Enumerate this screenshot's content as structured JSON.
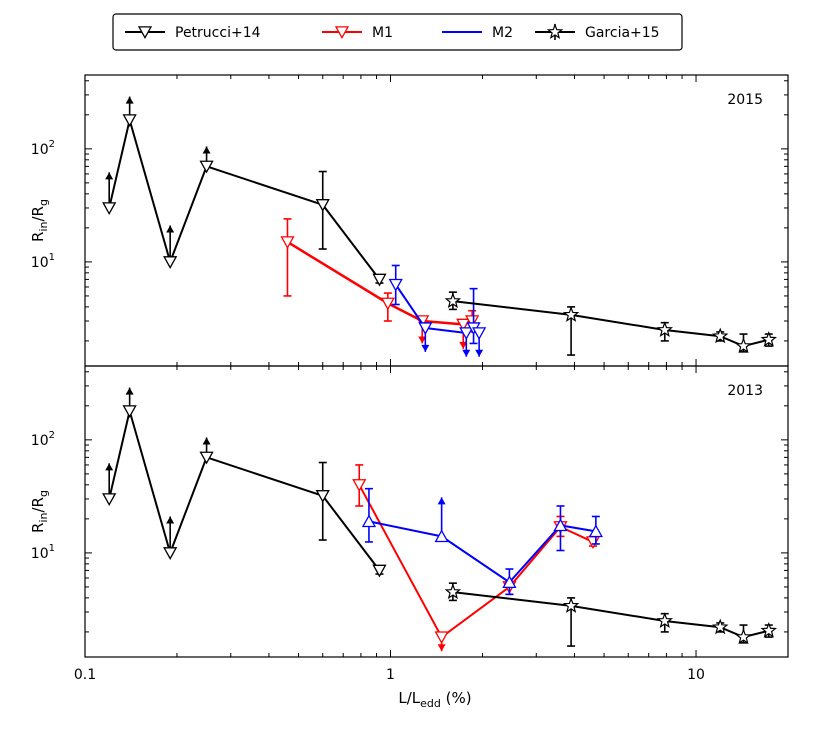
{
  "legend": [
    {
      "label": "Petrucci+14",
      "color": "#000000",
      "marker": "triangle-down"
    },
    {
      "label": "M1",
      "color": "#ff0000",
      "marker": "triangle-down"
    },
    {
      "label": "M2",
      "color": "#0000ff",
      "marker": "none"
    },
    {
      "label": "Garcia+15",
      "color": "#000000",
      "marker": "star"
    }
  ],
  "xaxis": {
    "label": "L/L",
    "label_sub": "edd",
    "label_unit": " (%)",
    "scale": "log",
    "range": [
      0.1,
      20
    ],
    "ticks": [
      {
        "v": 0.1,
        "label": "0.1"
      },
      {
        "v": 1,
        "label": "1"
      },
      {
        "v": 10,
        "label": "10"
      }
    ]
  },
  "chart_data": [
    {
      "type": "line",
      "title": "2015",
      "ylabel": "R",
      "ylabel_sub1": "in",
      "ylabel_mid": "/R",
      "ylabel_sub2": "g",
      "yscale": "log",
      "ylim": [
        1.2,
        450
      ],
      "yticks": [
        {
          "v": 10,
          "label": "10",
          "exp": "1"
        },
        {
          "v": 100,
          "label": "10",
          "exp": "2"
        }
      ],
      "series": [
        {
          "name": "Petrucci+14",
          "color": "#000000",
          "marker": "triangle-down",
          "lw": 2,
          "points": [
            {
              "x": 0.12,
              "y": 30,
              "arrow": "up",
              "arrow_to": 62
            },
            {
              "x": 0.14,
              "y": 180,
              "arrow": "up",
              "arrow_to": 290
            },
            {
              "x": 0.19,
              "y": 10,
              "arrow": "up",
              "arrow_to": 21
            },
            {
              "x": 0.25,
              "y": 70,
              "arrow": "up",
              "arrow_to": 105
            },
            {
              "x": 0.6,
              "y": 32,
              "err": [
                13,
                63
              ]
            },
            {
              "x": 0.92,
              "y": 7,
              "err": [
                6.5,
                7.5
              ]
            }
          ]
        },
        {
          "name": "M1",
          "color": "#ff0000",
          "marker": "triangle-down",
          "lw": 2.5,
          "points": [
            {
              "x": 0.46,
              "y": 15,
              "err": [
                5,
                24
              ]
            },
            {
              "x": 0.98,
              "y": 4.3,
              "err": [
                3,
                5.3
              ]
            },
            {
              "x": 1.27,
              "y": 3.0,
              "arrow": "down",
              "arrow_to": 1.9
            },
            {
              "x": 1.73,
              "y": 2.8,
              "arrow": "down",
              "arrow_to": 1.7
            },
            {
              "x": 1.85,
              "y": 3.0,
              "err": [
                2.4,
                3.7
              ]
            }
          ]
        },
        {
          "name": "M2",
          "color": "#0000ff",
          "marker": "open-triangle-down",
          "lw": 2,
          "points": [
            {
              "x": 1.04,
              "y": 6.3,
              "err": [
                4.2,
                9.3
              ]
            },
            {
              "x": 1.3,
              "y": 2.6,
              "arrow": "down",
              "arrow_to": 1.6
            },
            {
              "x": 1.77,
              "y": 2.35,
              "arrow": "down",
              "arrow_to": 1.45
            },
            {
              "x": 1.87,
              "y": 2.6,
              "err": [
                1.9,
                5.8
              ]
            },
            {
              "x": 1.95,
              "y": 2.35,
              "arrow": "down",
              "arrow_to": 1.45
            }
          ]
        },
        {
          "name": "Garcia+15",
          "color": "#000000",
          "marker": "star",
          "lw": 2,
          "points": [
            {
              "x": 1.6,
              "y": 4.5,
              "err": [
                3.8,
                5.4
              ]
            },
            {
              "x": 3.9,
              "y": 3.4,
              "err": [
                1.5,
                4.0
              ]
            },
            {
              "x": 7.9,
              "y": 2.5,
              "err": [
                2.0,
                2.9
              ]
            },
            {
              "x": 12.0,
              "y": 2.2,
              "err": [
                2.0,
                2.4
              ]
            },
            {
              "x": 14.3,
              "y": 1.8,
              "err": [
                1.6,
                2.3
              ]
            },
            {
              "x": 17.3,
              "y": 2.05,
              "err": [
                1.8,
                2.3
              ]
            }
          ]
        }
      ]
    },
    {
      "type": "line",
      "title": "2013",
      "ylabel": "R",
      "ylabel_sub1": "in",
      "ylabel_mid": "/R",
      "ylabel_sub2": "g",
      "yscale": "log",
      "ylim": [
        1.2,
        450
      ],
      "yticks": [
        {
          "v": 10,
          "label": "10",
          "exp": "1"
        },
        {
          "v": 100,
          "label": "10",
          "exp": "2"
        }
      ],
      "series": [
        {
          "name": "Petrucci+14",
          "color": "#000000",
          "marker": "triangle-down",
          "lw": 2,
          "points": [
            {
              "x": 0.12,
              "y": 30,
              "arrow": "up",
              "arrow_to": 62
            },
            {
              "x": 0.14,
              "y": 180,
              "arrow": "up",
              "arrow_to": 290
            },
            {
              "x": 0.19,
              "y": 10,
              "arrow": "up",
              "arrow_to": 21
            },
            {
              "x": 0.25,
              "y": 70,
              "arrow": "up",
              "arrow_to": 105
            },
            {
              "x": 0.6,
              "y": 32,
              "err": [
                13,
                63
              ]
            },
            {
              "x": 0.92,
              "y": 7,
              "err": [
                6.5,
                7.5
              ]
            }
          ]
        },
        {
          "name": "M1",
          "color": "#ff0000",
          "marker": "triangle-down",
          "lw": 2,
          "points": [
            {
              "x": 0.79,
              "y": 40,
              "err": [
                26,
                60
              ]
            },
            {
              "x": 1.47,
              "y": 1.8,
              "arrow": "down",
              "arrow_to": 1.35
            },
            {
              "x": 2.45,
              "y": 5.0,
              "err": [
                4.3,
                5.6
              ]
            },
            {
              "x": 3.6,
              "y": 17,
              "err": [
                14,
                21
              ]
            },
            {
              "x": 4.6,
              "y": 12.5,
              "err": [
                11.5,
                14
              ]
            }
          ]
        },
        {
          "name": "M2",
          "color": "#0000ff",
          "marker": "open-triangle-up",
          "lw": 2,
          "points": [
            {
              "x": 0.85,
              "y": 19,
              "err": [
                12.5,
                37
              ]
            },
            {
              "x": 1.47,
              "y": 14,
              "arrow": "up",
              "arrow_to": 31
            },
            {
              "x": 2.45,
              "y": 5.5,
              "err": [
                4.3,
                7.2
              ]
            },
            {
              "x": 3.6,
              "y": 17.5,
              "err": [
                10.5,
                26
              ]
            },
            {
              "x": 4.7,
              "y": 15.5,
              "err": [
                12,
                21
              ]
            }
          ]
        },
        {
          "name": "Garcia+15",
          "color": "#000000",
          "marker": "star",
          "lw": 2,
          "points": [
            {
              "x": 1.6,
              "y": 4.5,
              "err": [
                3.8,
                5.4
              ]
            },
            {
              "x": 3.9,
              "y": 3.4,
              "err": [
                1.5,
                4.0
              ]
            },
            {
              "x": 7.9,
              "y": 2.5,
              "err": [
                2.0,
                2.9
              ]
            },
            {
              "x": 12.0,
              "y": 2.2,
              "err": [
                2.0,
                2.4
              ]
            },
            {
              "x": 14.3,
              "y": 1.8,
              "err": [
                1.6,
                2.3
              ]
            },
            {
              "x": 17.3,
              "y": 2.05,
              "err": [
                1.8,
                2.3
              ]
            }
          ]
        }
      ]
    }
  ]
}
